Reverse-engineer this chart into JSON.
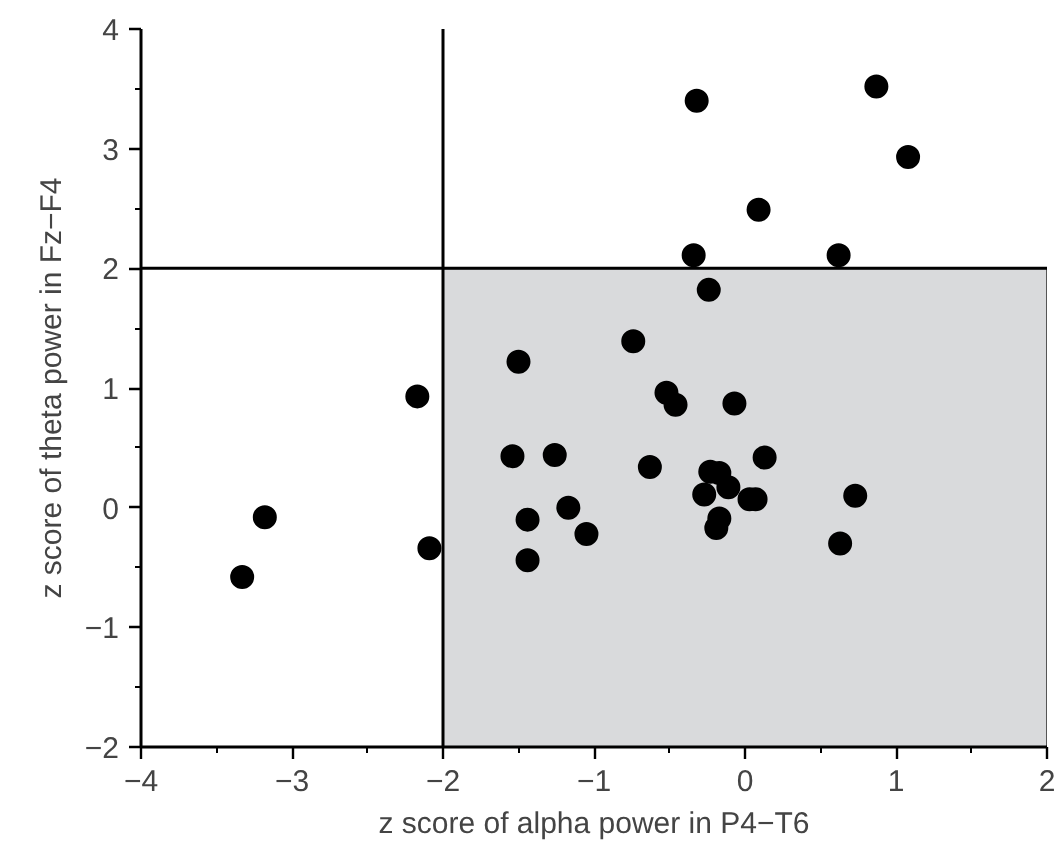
{
  "chart_data": {
    "type": "scatter",
    "xlabel": "z score of alpha power in P4−T6",
    "ylabel": "z score of theta power in Fz−F4",
    "xlim": [
      -4,
      2
    ],
    "ylim": [
      -2,
      4
    ],
    "xticks": [
      -4,
      -3,
      -2,
      -1,
      0,
      1,
      2
    ],
    "yticks": [
      -2,
      -1,
      0,
      1,
      2,
      3,
      4
    ],
    "grid": false,
    "marker": "circle",
    "ref_lines": [
      {
        "axis": "x",
        "value": -2,
        "color": "#000000"
      },
      {
        "axis": "y",
        "value": 2,
        "color": "#000000"
      }
    ],
    "bands": [
      {
        "axis": "x",
        "from": -2,
        "to": 2,
        "color": "#d9dadc"
      }
    ],
    "series": [
      {
        "color": "#000000",
        "x": [
          -0.32,
          0.87,
          1.08,
          0.09,
          -0.34,
          0.62,
          -0.24,
          -0.74,
          -1.5,
          -2.17,
          -0.52,
          -0.46,
          -0.07,
          -1.54,
          -1.26,
          -0.63,
          0.13,
          -0.23,
          -0.17,
          -0.11,
          -0.27,
          0.03,
          0.07,
          0.73,
          -0.17,
          -0.19,
          0.63,
          -3.18,
          -3.33,
          -2.09,
          -1.44,
          -1.17,
          -1.05,
          -1.44
        ],
        "values": [
          3.4,
          3.52,
          2.93,
          2.49,
          2.11,
          2.11,
          1.82,
          1.39,
          1.22,
          0.93,
          0.96,
          0.86,
          0.87,
          0.43,
          0.44,
          0.34,
          0.42,
          0.3,
          0.29,
          0.17,
          0.11,
          0.07,
          0.07,
          0.1,
          -0.09,
          -0.17,
          -0.3,
          -0.08,
          -0.58,
          -0.34,
          -0.1,
          0.0,
          -0.22,
          -0.44
        ]
      }
    ]
  }
}
